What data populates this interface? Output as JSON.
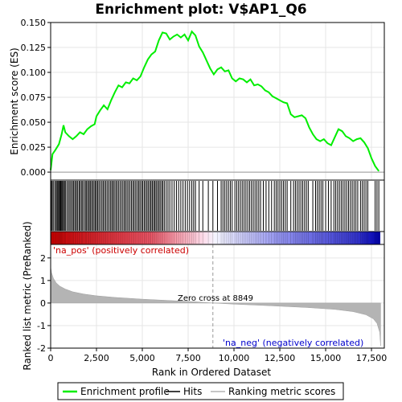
{
  "chart_data": {
    "type": "line",
    "title": "Enrichment plot: V$AP1_Q6",
    "x_axis": {
      "label": "Rank in Ordered Dataset",
      "range": [
        0,
        18200
      ],
      "ticks": [
        0,
        2500,
        5000,
        7500,
        10000,
        12500,
        15000,
        17500
      ],
      "tick_labels": [
        "0",
        "2,500",
        "5,000",
        "7,500",
        "10,000",
        "12,500",
        "15,000",
        "17,500"
      ]
    },
    "es_panel": {
      "ylabel": "Enrichment score (ES)",
      "ylim": [
        -0.008,
        0.15
      ],
      "ticks": [
        0,
        0.025,
        0.05,
        0.075,
        0.1,
        0.125,
        0.15
      ],
      "tick_labels": [
        "0.000",
        "0.025",
        "0.050",
        "0.075",
        "0.100",
        "0.125",
        "0.150"
      ],
      "series_name": "Enrichment profile",
      "color": "#00ee00",
      "x": [
        0,
        100,
        250,
        450,
        600,
        700,
        800,
        1000,
        1200,
        1400,
        1600,
        1800,
        2000,
        2200,
        2400,
        2500,
        2700,
        2900,
        3100,
        3300,
        3500,
        3700,
        3900,
        4100,
        4300,
        4500,
        4700,
        4900,
        5100,
        5300,
        5500,
        5700,
        5900,
        6100,
        6300,
        6500,
        6700,
        6900,
        7100,
        7300,
        7500,
        7700,
        7900,
        8100,
        8300,
        8500,
        8700,
        8900,
        9100,
        9300,
        9500,
        9700,
        9900,
        10100,
        10300,
        10500,
        10700,
        10900,
        11100,
        11300,
        11500,
        11700,
        11900,
        12100,
        12300,
        12500,
        12700,
        12900,
        13100,
        13300,
        13500,
        13700,
        13900,
        14100,
        14300,
        14500,
        14700,
        14900,
        15100,
        15300,
        15500,
        15700,
        15900,
        16100,
        16300,
        16500,
        16700,
        16900,
        17100,
        17300,
        17500,
        17700,
        17900
      ],
      "y": [
        0.002,
        0.018,
        0.022,
        0.028,
        0.038,
        0.047,
        0.04,
        0.036,
        0.033,
        0.036,
        0.04,
        0.038,
        0.043,
        0.046,
        0.048,
        0.056,
        0.062,
        0.067,
        0.063,
        0.072,
        0.08,
        0.087,
        0.085,
        0.09,
        0.089,
        0.094,
        0.092,
        0.096,
        0.105,
        0.113,
        0.118,
        0.121,
        0.132,
        0.14,
        0.139,
        0.133,
        0.136,
        0.138,
        0.135,
        0.138,
        0.132,
        0.141,
        0.137,
        0.126,
        0.12,
        0.112,
        0.104,
        0.098,
        0.103,
        0.105,
        0.101,
        0.102,
        0.094,
        0.091,
        0.094,
        0.093,
        0.09,
        0.093,
        0.087,
        0.088,
        0.086,
        0.082,
        0.08,
        0.076,
        0.074,
        0.072,
        0.07,
        0.069,
        0.058,
        0.055,
        0.056,
        0.057,
        0.054,
        0.045,
        0.038,
        0.033,
        0.031,
        0.033,
        0.029,
        0.027,
        0.035,
        0.043,
        0.041,
        0.036,
        0.034,
        0.031,
        0.033,
        0.034,
        0.03,
        0.024,
        0.014,
        0.006,
        0.001
      ]
    },
    "hits_panel": {
      "series_name": "Hits",
      "hit_ranks": [
        30,
        80,
        140,
        220,
        290,
        350,
        400,
        450,
        500,
        550,
        600,
        650,
        700,
        760,
        820,
        900,
        980,
        1050,
        1120,
        1200,
        1260,
        1330,
        1400,
        1460,
        1540,
        1600,
        1680,
        1740,
        1820,
        1900,
        1960,
        2030,
        2100,
        2160,
        2230,
        2300,
        2370,
        2440,
        2500,
        2570,
        2640,
        2720,
        2800,
        2870,
        2950,
        3020,
        3100,
        3180,
        3260,
        3330,
        3400,
        3470,
        3550,
        3620,
        3700,
        3780,
        3860,
        3940,
        4020,
        4090,
        4170,
        4250,
        4330,
        4410,
        4490,
        4560,
        4640,
        4720,
        4800,
        4870,
        4950,
        5020,
        5100,
        5170,
        5250,
        5320,
        5400,
        5470,
        5540,
        5610,
        5680,
        5750,
        5820,
        5900,
        5970,
        6050,
        6120,
        6200,
        6300,
        6400,
        6500,
        6620,
        6740,
        6860,
        6980,
        7100,
        7220,
        7340,
        7460,
        7580,
        7700,
        7800,
        7900,
        8100,
        8300,
        8600,
        8850,
        9100,
        9300,
        9400,
        9500,
        9600,
        9700,
        9800,
        9900,
        10050,
        10150,
        10250,
        10350,
        10450,
        10550,
        10650,
        10750,
        10850,
        10950,
        11050,
        11150,
        11250,
        11350,
        11450,
        11600,
        11750,
        11900,
        12050,
        12200,
        12300,
        12400,
        12500,
        12600,
        12700,
        12800,
        12900,
        13100,
        13250,
        13350,
        13450,
        13550,
        13650,
        13750,
        13850,
        13950,
        14050,
        14300,
        14450,
        14550,
        14650,
        14750,
        14850,
        15000,
        15150,
        15300,
        15450,
        15550,
        15650,
        15750,
        15850,
        15950,
        16050,
        16150,
        16250,
        16350,
        16450,
        16550,
        16650,
        16750,
        16900,
        17000,
        17100,
        17200,
        17300,
        17700,
        17800,
        17900
      ]
    },
    "metric_panel": {
      "series_name": "Ranking metric scores",
      "ylabel": "Ranked list metric (PreRanked)",
      "ylim": [
        -2.0,
        2.6
      ],
      "ticks": [
        -2,
        -1,
        0,
        1,
        2
      ],
      "tick_labels": [
        "-2",
        "-1",
        "0",
        "1",
        "2"
      ],
      "x": [
        0,
        50,
        150,
        300,
        500,
        800,
        1200,
        1800,
        2500,
        3500,
        5000,
        6500,
        8000,
        8849,
        10000,
        12000,
        14000,
        15500,
        16500,
        17200,
        17600,
        17800,
        17950,
        18000
      ],
      "y": [
        1.6,
        1.35,
        1.1,
        0.9,
        0.75,
        0.62,
        0.5,
        0.4,
        0.32,
        0.25,
        0.17,
        0.11,
        0.05,
        0.0,
        -0.05,
        -0.12,
        -0.2,
        -0.28,
        -0.38,
        -0.52,
        -0.7,
        -0.9,
        -1.3,
        -1.9
      ],
      "pos_label": "'na_pos' (positively correlated)",
      "neg_label": "'na_neg' (negatively correlated)",
      "zero_cross_label": "Zero cross at 8849",
      "zero_cross": 8849
    },
    "legend": {
      "placement": "bottom",
      "items": [
        "Enrichment profile",
        "Hits",
        "Ranking metric scores"
      ]
    },
    "colors": {
      "profile": "#00ee00",
      "hits": "#000000",
      "metric_fill": "#b4b4b4",
      "pos": "#cc0000",
      "neg": "#0000cc",
      "grid": "#e6e6e6"
    }
  }
}
